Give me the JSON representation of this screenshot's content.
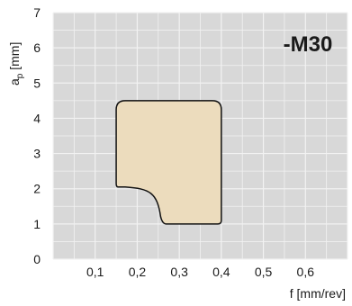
{
  "chart_data": {
    "type": "area",
    "badge": "-M30",
    "xlabel": "f [mm/rev]",
    "ylabel_main": "a",
    "ylabel_sub": "p",
    "ylabel_unit": " [mm]",
    "xlim": [
      0,
      0.7
    ],
    "ylim": [
      0,
      7
    ],
    "x_ticks": [
      "0,1",
      "0,2",
      "0,3",
      "0,4",
      "0,5",
      "0,6"
    ],
    "x_tick_values": [
      0.1,
      0.2,
      0.3,
      0.4,
      0.5,
      0.6
    ],
    "y_ticks": [
      "0",
      "1",
      "2",
      "3",
      "4",
      "5",
      "6",
      "7"
    ],
    "y_tick_values": [
      0,
      1,
      2,
      3,
      4,
      5,
      6,
      7
    ],
    "grid": true,
    "region": {
      "name": "-M30",
      "f_min": 0.15,
      "f_max": 0.4,
      "ap_min": 1.0,
      "ap_max": 4.5,
      "lower_left_step_ap": 2.0,
      "lower_left_step_f": 0.26
    },
    "colors": {
      "region_fill": "#ecdcbd",
      "region_stroke": "#111111",
      "plot_background": "#d8d8d8",
      "grid_line": "#f2f2f2"
    }
  }
}
